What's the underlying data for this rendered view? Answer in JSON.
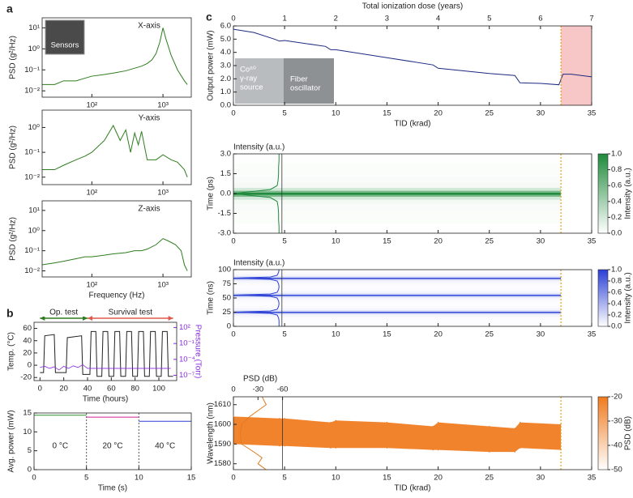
{
  "chart_data": [
    {
      "type": "line",
      "panel": "a",
      "title": "X-axis",
      "inset": "Sensors",
      "ylabel": "PSD (g²/Hz)",
      "xscale": "log",
      "xlim": [
        20,
        2500
      ],
      "xticks": [
        {
          "value": 100,
          "label": "10²"
        },
        {
          "value": 1000,
          "label": "10³"
        }
      ],
      "yscale": "log",
      "ylim": [
        0.005,
        30
      ],
      "yticks": [
        {
          "value": 0.01,
          "label": "10⁻²"
        },
        {
          "value": 0.1,
          "label": "10⁻¹"
        },
        {
          "value": 1,
          "label": "10⁰"
        },
        {
          "value": 10,
          "label": "10¹"
        }
      ],
      "series": [
        {
          "color": "#2e7d1e",
          "x": [
            20,
            30,
            40,
            60,
            80,
            100,
            150,
            200,
            300,
            400,
            500,
            600,
            700,
            800,
            900,
            1000,
            1100,
            1300,
            1600,
            2000,
            2200
          ],
          "values": [
            0.02,
            0.02,
            0.03,
            0.03,
            0.04,
            0.05,
            0.06,
            0.07,
            0.09,
            0.12,
            0.15,
            0.2,
            0.3,
            0.6,
            2,
            10,
            3,
            0.5,
            0.1,
            0.03,
            0.02
          ]
        }
      ]
    },
    {
      "type": "line",
      "title": "Y-axis",
      "ylabel": "PSD (g²/Hz)",
      "xscale": "log",
      "xlim": [
        20,
        2500
      ],
      "xticks": [
        {
          "value": 100,
          "label": "10²"
        },
        {
          "value": 1000,
          "label": "10³"
        }
      ],
      "yscale": "log",
      "ylim": [
        0.005,
        5
      ],
      "yticks": [
        {
          "value": 0.01,
          "label": "10⁻²"
        },
        {
          "value": 0.1,
          "label": "10⁻¹"
        },
        {
          "value": 1,
          "label": "10⁰"
        }
      ],
      "series": [
        {
          "color": "#2e7d1e",
          "x": [
            20,
            30,
            40,
            60,
            80,
            100,
            150,
            200,
            250,
            300,
            350,
            400,
            450,
            500,
            600,
            800,
            1000,
            1300,
            1600,
            2000,
            2200
          ],
          "values": [
            0.02,
            0.02,
            0.03,
            0.05,
            0.07,
            0.1,
            0.3,
            1.2,
            0.3,
            0.8,
            0.1,
            0.6,
            0.2,
            0.7,
            0.05,
            0.05,
            0.08,
            0.05,
            0.04,
            0.02,
            0.01
          ]
        }
      ]
    },
    {
      "type": "line",
      "title": "Z-axis",
      "ylabel": "PSD (g²/Hz)",
      "xlabel": "Frequency (Hz)",
      "xscale": "log",
      "xlim": [
        20,
        2500
      ],
      "xticks": [
        {
          "value": 100,
          "label": "10²"
        },
        {
          "value": 1000,
          "label": "10³"
        }
      ],
      "yscale": "log",
      "ylim": [
        0.005,
        30
      ],
      "yticks": [
        {
          "value": 0.01,
          "label": "10⁻²"
        },
        {
          "value": 0.1,
          "label": "10⁻¹"
        },
        {
          "value": 1,
          "label": "10⁰"
        },
        {
          "value": 10,
          "label": "10¹"
        }
      ],
      "series": [
        {
          "color": "#2e7d1e",
          "x": [
            20,
            30,
            40,
            60,
            80,
            100,
            150,
            200,
            300,
            400,
            500,
            600,
            800,
            1000,
            1200,
            1500,
            1800,
            2000,
            2200
          ],
          "values": [
            0.02,
            0.025,
            0.03,
            0.04,
            0.05,
            0.05,
            0.06,
            0.07,
            0.08,
            0.1,
            0.1,
            0.12,
            0.2,
            0.4,
            0.3,
            0.2,
            0.1,
            0.02,
            0.01
          ]
        }
      ]
    },
    {
      "type": "line",
      "panel": "b",
      "xlabel": "Time (hours)",
      "ylabel": "Temp. (°C)",
      "y2label": "Pressure (Torr)",
      "xlim": [
        -5,
        115
      ],
      "xticks": [
        0,
        20,
        40,
        60,
        80,
        100
      ],
      "ylim": [
        -25,
        70
      ],
      "yticks": [
        -20,
        0,
        20,
        40,
        60
      ],
      "y2scale": "log",
      "y2lim": [
        1e-08,
        1000
      ],
      "y2ticks": [
        {
          "value": 1e-07,
          "label": "10⁻⁷"
        },
        {
          "value": 0.0001,
          "label": "10⁻⁴"
        },
        {
          "value": 0.1,
          "label": "10⁻¹"
        },
        {
          "value": 100,
          "label": "10²"
        }
      ],
      "annotations": [
        {
          "text": "Op. test",
          "x": [
            0,
            40
          ],
          "color": "#2e7d1e"
        },
        {
          "text": "Survival test",
          "x": [
            40,
            112
          ],
          "color": "#e05a4a"
        }
      ],
      "series": [
        {
          "color": "#222222",
          "x": [
            0,
            3,
            4,
            12,
            13,
            22,
            23,
            35,
            36,
            42,
            43,
            47,
            48,
            52,
            53,
            57,
            58,
            62,
            63,
            67,
            68,
            72,
            73,
            77,
            78,
            82,
            83,
            87,
            88,
            92,
            93,
            97,
            98,
            102,
            103,
            107,
            108,
            112
          ],
          "values": [
            -12,
            -12,
            48,
            50,
            -12,
            -12,
            45,
            48,
            -15,
            -15,
            55,
            55,
            -18,
            -18,
            55,
            55,
            -18,
            -18,
            55,
            55,
            -18,
            -18,
            55,
            55,
            -18,
            -18,
            55,
            55,
            -18,
            -18,
            55,
            55,
            -18,
            -18,
            55,
            55,
            -18,
            -18
          ]
        },
        {
          "color": "#8a2be2",
          "axis": "y2",
          "x": [
            0,
            4,
            8,
            12,
            16,
            20,
            24,
            28,
            32,
            36,
            40,
            50,
            60,
            70,
            80,
            90,
            100,
            110
          ],
          "values": [
            3e-06,
            5e-06,
            2e-06,
            4e-06,
            1e-06,
            5e-06,
            2e-06,
            6e-06,
            3e-06,
            1e-05,
            2e-06,
            2e-06,
            2e-06,
            2e-06,
            2e-06,
            2e-06,
            2e-06,
            2e-06
          ]
        }
      ]
    },
    {
      "type": "line",
      "xlabel": "Time (s)",
      "ylabel": "Avg. power (mW)",
      "xlim": [
        0,
        15
      ],
      "xticks": [
        0,
        5,
        10,
        15
      ],
      "ylim": [
        0,
        15
      ],
      "yticks": [
        0,
        5,
        10,
        15
      ],
      "vlines": [
        5,
        10
      ],
      "series": [
        {
          "label": "0 °C",
          "color": "#2e8b2e",
          "x": [
            0,
            5
          ],
          "values": [
            14.4,
            14.4
          ]
        },
        {
          "label": "20 °C",
          "color": "#d02090",
          "x": [
            5,
            10
          ],
          "values": [
            13.9,
            13.9
          ]
        },
        {
          "label": "40 °C",
          "color": "#2a3fd6",
          "x": [
            10,
            15
          ],
          "values": [
            12.8,
            12.8
          ]
        }
      ]
    },
    {
      "type": "line",
      "panel": "c",
      "xlabel": "TID (krad)",
      "ylabel": "Output power (mW)",
      "x2label": "Total ionization dose (years)",
      "xlim": [
        0,
        35
      ],
      "xticks": [
        0,
        5,
        10,
        15,
        20,
        25,
        30,
        35
      ],
      "x2lim": [
        0,
        7
      ],
      "x2ticks": [
        0,
        1,
        2,
        3,
        4,
        5,
        6,
        7
      ],
      "ylim": [
        0,
        6
      ],
      "yticks": [
        {
          "value": 0,
          "label": "0.0"
        },
        {
          "value": 1,
          "label": "1.0"
        },
        {
          "value": 2,
          "label": "2.0"
        },
        {
          "value": 3,
          "label": "3.0"
        },
        {
          "value": 4,
          "label": "4.0"
        },
        {
          "value": 5,
          "label": "5.0"
        },
        {
          "value": 6,
          "label": "6.0"
        }
      ],
      "highlight": [
        32,
        35
      ],
      "vline": 32,
      "inset_left": [
        "Co⁶⁰",
        "γ-ray",
        "source"
      ],
      "inset_right": [
        "Fiber",
        "oscillator"
      ],
      "series": [
        {
          "color": "#1c2a80",
          "x": [
            0,
            2,
            4,
            4.5,
            5,
            9,
            9.5,
            10,
            15,
            19.5,
            20,
            25,
            27.5,
            28,
            30,
            31.8,
            32.2,
            33,
            35
          ],
          "values": [
            5.75,
            5.5,
            5.0,
            4.85,
            4.9,
            4.45,
            4.2,
            4.2,
            3.6,
            3.05,
            2.8,
            2.4,
            2.25,
            1.7,
            1.65,
            1.55,
            2.35,
            2.35,
            2.15
          ]
        }
      ]
    },
    {
      "type": "heatmap",
      "ylabel": "Time (ps)",
      "profile_label": "Intensity (a.u.)",
      "xlim": [
        0,
        35
      ],
      "xticks": [
        0,
        5,
        10,
        15,
        20,
        25,
        30,
        35
      ],
      "ylim": [
        -3,
        3
      ],
      "yticks": [
        {
          "value": 3,
          "label": "3.0"
        },
        {
          "value": 1.5,
          "label": "1.5"
        },
        {
          "value": 0,
          "label": "0.0"
        },
        {
          "value": -1.5,
          "label": "-1.5"
        },
        {
          "value": -3,
          "label": "-3.0"
        }
      ],
      "vline": 32,
      "color": "#1f8a3c",
      "profile": {
        "y": [
          -3,
          -2.5,
          -2,
          -1.5,
          -1,
          -0.6,
          -0.3,
          -0.15,
          0,
          0.15,
          0.3,
          0.6,
          1,
          1.5,
          2,
          2.5,
          3
        ],
        "values": [
          0.01,
          0.01,
          0.02,
          0.02,
          0.03,
          0.05,
          0.2,
          0.6,
          1,
          0.6,
          0.2,
          0.05,
          0.03,
          0.02,
          0.02,
          0.01,
          0.01
        ]
      },
      "colorbar": {
        "label": "Intensity (a.u.)",
        "lim": [
          0,
          1
        ],
        "colors": [
          "#ffffff",
          "#1f8a3c"
        ],
        "ticks": [
          {
            "value": 0,
            "label": "0.0"
          },
          {
            "value": 0.2,
            "label": "0.2"
          },
          {
            "value": 0.4,
            "label": "0.4"
          },
          {
            "value": 0.6,
            "label": "0.6"
          },
          {
            "value": 0.8,
            "label": "0.8"
          },
          {
            "value": 1,
            "label": "1.0"
          }
        ]
      }
    },
    {
      "type": "heatmap",
      "ylabel": "Time (ns)",
      "profile_label": "Intensity (a.u.)",
      "xlim": [
        0,
        35
      ],
      "xticks": [
        0,
        5,
        10,
        15,
        20,
        25,
        30,
        35
      ],
      "ylim": [
        0,
        100
      ],
      "yticks": [
        0,
        25,
        50,
        75,
        100
      ],
      "vline": 32,
      "color": "#2a3fd6",
      "profile": {
        "y": [
          0,
          5,
          10,
          15,
          20,
          23,
          25,
          27,
          30,
          35,
          40,
          45,
          50,
          53,
          55,
          57,
          60,
          65,
          70,
          75,
          80,
          83,
          85,
          87,
          90,
          95,
          100
        ],
        "values": [
          0.01,
          0.01,
          0.01,
          0.02,
          0.05,
          0.2,
          1,
          0.2,
          0.05,
          0.02,
          0.01,
          0.02,
          0.05,
          0.2,
          1,
          0.2,
          0.05,
          0.02,
          0.01,
          0.02,
          0.05,
          0.2,
          1,
          0.2,
          0.05,
          0.02,
          0.01
        ]
      },
      "colorbar": {
        "label": "Intensity (a.u.)",
        "lim": [
          0,
          1
        ],
        "colors": [
          "#ffffff",
          "#2a3fd6"
        ],
        "ticks": [
          {
            "value": 0,
            "label": "0.0"
          },
          {
            "value": 0.2,
            "label": "0.2"
          },
          {
            "value": 0.4,
            "label": "0.4"
          },
          {
            "value": 0.6,
            "label": "0.6"
          },
          {
            "value": 0.8,
            "label": "0.8"
          },
          {
            "value": 1,
            "label": "1.0"
          }
        ]
      }
    },
    {
      "type": "heatmap",
      "ylabel": "Wavelength (nm)",
      "xlabel": "TID (krad)",
      "x2label": "PSD (dB)",
      "xlim": [
        0,
        35
      ],
      "xticks": [
        0,
        5,
        10,
        15,
        20,
        25,
        30,
        35
      ],
      "x2lim": [
        0,
        -437.5
      ],
      "x2ticks": [
        0,
        -30,
        -60
      ],
      "ylim": [
        1577,
        1614
      ],
      "yticks": [
        1580,
        1590,
        1600,
        1610
      ],
      "vline": 32,
      "color": "#e07b1f",
      "profile": {
        "y": [
          1577,
          1580,
          1583,
          1586,
          1590,
          1595,
          1600,
          1604,
          1607,
          1610,
          1614
        ],
        "values": [
          -40,
          -30,
          -35,
          -25,
          -10,
          -8,
          -10,
          -20,
          -30,
          -40,
          -35
        ]
      },
      "band": {
        "x": [
          0,
          4.5,
          5,
          9.5,
          10,
          15,
          19.5,
          20,
          25,
          27.5,
          28,
          32
        ],
        "lower": [
          1590,
          1589,
          1589,
          1588,
          1588,
          1588,
          1587,
          1587,
          1586,
          1586,
          1588,
          1587
        ],
        "upper": [
          1604,
          1603,
          1603,
          1601,
          1602,
          1601,
          1599,
          1601,
          1599,
          1598,
          1601,
          1600
        ],
        "value": -22
      },
      "colorbar": {
        "label": "PSD (dB)",
        "lim": [
          -50,
          -20
        ],
        "colors": [
          "#ffffff",
          "#f07a1e"
        ],
        "ticks": [
          -20,
          -30,
          -40,
          -50
        ]
      }
    }
  ]
}
